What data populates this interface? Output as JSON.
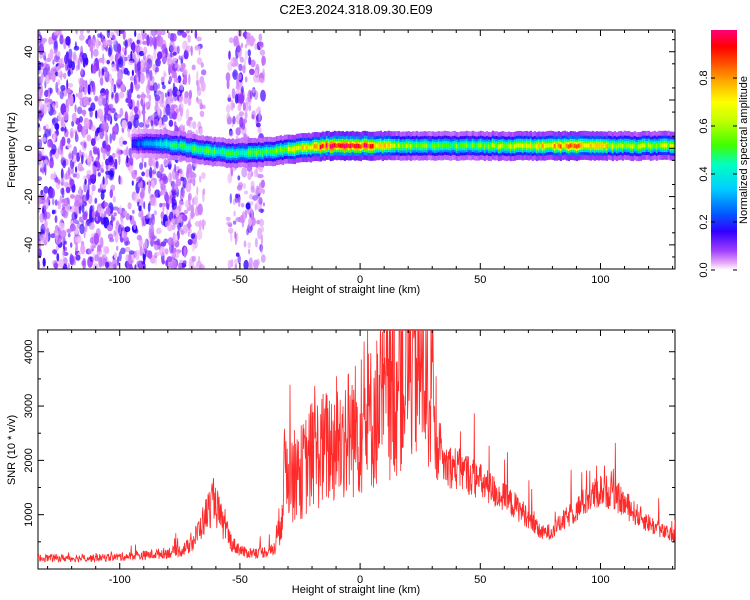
{
  "title": "C2E3.2024.318.09.30.E09",
  "chart_data": [
    {
      "type": "heatmap",
      "xlabel": "Height of straight line (km)",
      "ylabel": "Frequency (Hz)",
      "xlim": [
        -134,
        131
      ],
      "ylim": [
        -50,
        49
      ],
      "x_ticks": [
        -100,
        -50,
        0,
        50,
        100
      ],
      "y_ticks": [
        -40,
        -20,
        0,
        20,
        40
      ],
      "colorbar": {
        "label": "Normalized spectral amplitude",
        "range": [
          0,
          1
        ],
        "ticks": [
          "0.0",
          "0.2",
          "0.4",
          "0.6",
          "0.8"
        ],
        "tick_values": [
          0,
          0.2,
          0.4,
          0.6,
          0.8
        ],
        "colors": [
          "#ffffff",
          "#e090f0",
          "#8000ff",
          "#0000ff",
          "#00c0ff",
          "#00ffa0",
          "#40ff00",
          "#ffff00",
          "#ff8000",
          "#ff0000",
          "#ff0060"
        ]
      },
      "noise_band_x": [
        -134,
        -73
      ],
      "noise_band2_x": [
        -55,
        -40
      ],
      "signal_track": {
        "x": [
          -95,
          -85,
          -75,
          -65,
          -55,
          -45,
          -35,
          -25,
          -15,
          0,
          15,
          30,
          50,
          75,
          90,
          110,
          131
        ],
        "freq": [
          2,
          2,
          1,
          -1,
          -2,
          -2,
          -1,
          0,
          1,
          1,
          1,
          1,
          1,
          1,
          1,
          1,
          1
        ],
        "amplitude": [
          0.2,
          0.35,
          0.45,
          0.5,
          0.45,
          0.5,
          0.55,
          0.7,
          0.9,
          0.95,
          0.6,
          0.5,
          0.55,
          0.7,
          0.8,
          0.6,
          0.6
        ]
      }
    },
    {
      "type": "line",
      "xlabel": "Height of straight line (km)",
      "ylabel": "SNR (10 * v/v)",
      "xlim": [
        -134,
        131
      ],
      "ylim": [
        0,
        4400
      ],
      "x_ticks": [
        -100,
        -50,
        0,
        50,
        100
      ],
      "y_ticks": [
        1000,
        2000,
        3000,
        4000
      ],
      "color": "#ff2a2a",
      "envelope": {
        "x": [
          -134,
          -110,
          -90,
          -80,
          -75,
          -70,
          -64,
          -61,
          -57,
          -53,
          -48,
          -42,
          -36,
          -33,
          -31,
          -28,
          -24,
          -20,
          -15,
          -10,
          -5,
          0,
          5,
          10,
          15,
          18,
          21,
          24,
          27,
          30,
          31,
          35,
          45,
          55,
          65,
          70,
          75,
          80,
          90,
          95,
          100,
          105,
          110,
          115,
          120,
          125,
          131
        ],
        "y": [
          200,
          200,
          250,
          300,
          330,
          450,
          1000,
          1300,
          800,
          450,
          300,
          300,
          350,
          900,
          2000,
          1700,
          1800,
          2100,
          2200,
          2300,
          2500,
          2600,
          2800,
          3100,
          3300,
          3600,
          3800,
          3700,
          3600,
          3400,
          2100,
          1950,
          1750,
          1450,
          1150,
          950,
          650,
          700,
          1100,
          1300,
          1450,
          1400,
          1200,
          1000,
          850,
          700,
          600
        ]
      }
    }
  ]
}
